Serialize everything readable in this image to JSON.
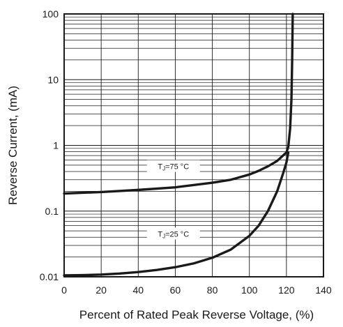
{
  "chart_data": {
    "type": "line",
    "xlabel": "Percent of Rated Peak Reverse Voltage, (%)",
    "ylabel": "Reverse Current, (mA)",
    "xlim": [
      0,
      140
    ],
    "ylim": [
      0.01,
      100
    ],
    "yscale": "log",
    "grid": true,
    "x_ticks": [
      0,
      20,
      40,
      60,
      80,
      100,
      120,
      140
    ],
    "x_tick_labels": [
      "0",
      "20",
      "40",
      "60",
      "80",
      "100",
      "120",
      "140"
    ],
    "y_ticks": [
      0.01,
      0.1,
      1,
      10,
      100
    ],
    "y_tick_labels": [
      "0.01",
      "0.1",
      "1",
      "10",
      "100"
    ],
    "series": [
      {
        "name": "TJ=75 °C",
        "label_parts": {
          "main": "T",
          "sub": "J",
          "rest": "=75 °C"
        },
        "label_at": {
          "x": 59,
          "y": 0.48
        },
        "color": "#1a1a1a",
        "x": [
          0,
          20,
          40,
          60,
          80,
          90,
          100,
          105,
          110,
          115,
          120,
          121,
          122,
          122.7,
          123.1,
          123.4
        ],
        "y": [
          0.185,
          0.195,
          0.21,
          0.23,
          0.27,
          0.3,
          0.36,
          0.41,
          0.48,
          0.58,
          0.78,
          0.95,
          1.8,
          5,
          20,
          100
        ]
      },
      {
        "name": "TJ=25 °C",
        "label_parts": {
          "main": "T",
          "sub": "J",
          "rest": "=25 °C"
        },
        "label_at": {
          "x": 59,
          "y": 0.045
        },
        "color": "#1a1a1a",
        "x": [
          0,
          10,
          20,
          30,
          40,
          50,
          60,
          70,
          80,
          90,
          100,
          105,
          110,
          115,
          118,
          120,
          121
        ],
        "y": [
          0.0105,
          0.0106,
          0.0108,
          0.0112,
          0.0118,
          0.0127,
          0.014,
          0.016,
          0.0195,
          0.026,
          0.042,
          0.06,
          0.1,
          0.2,
          0.36,
          0.55,
          0.78
        ]
      }
    ]
  }
}
